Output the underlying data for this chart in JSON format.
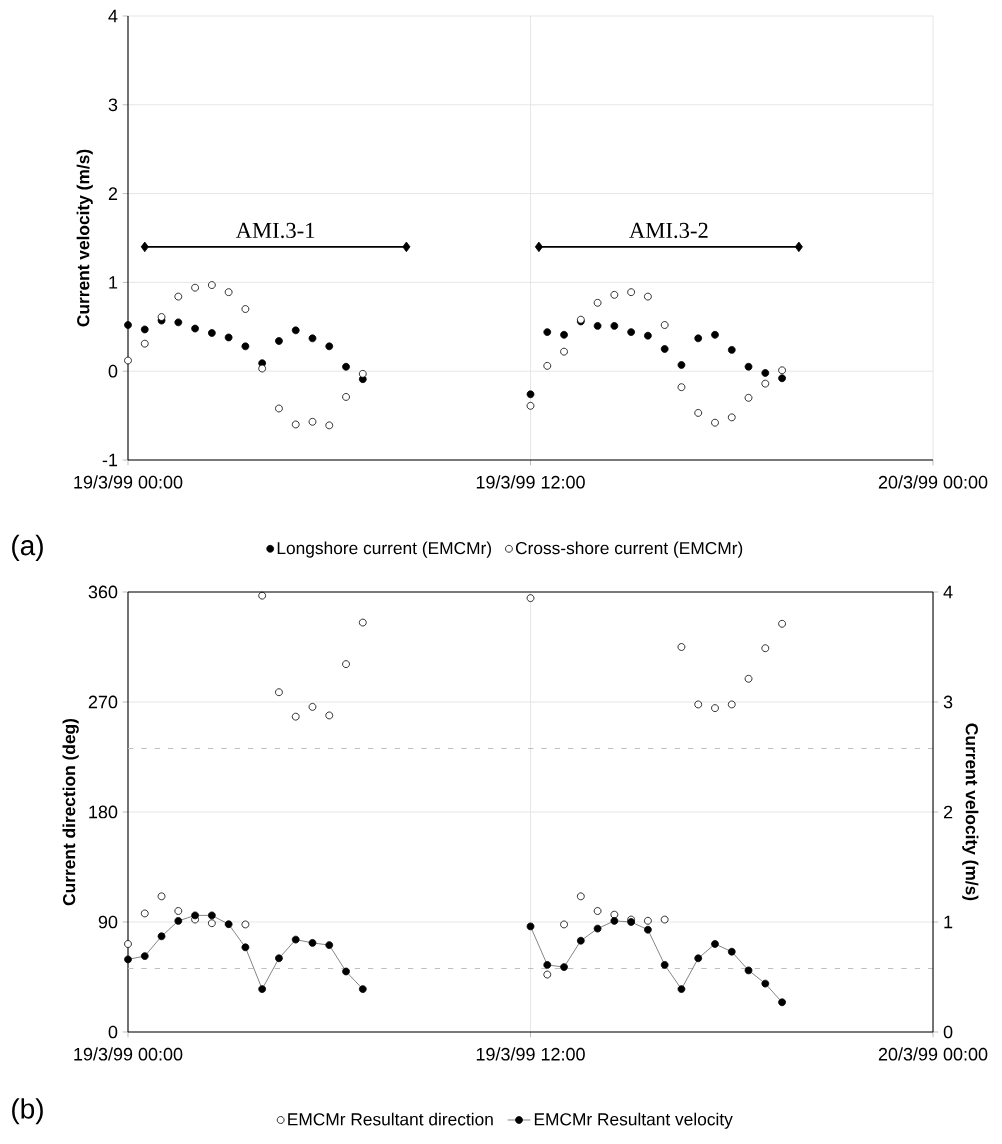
{
  "chart_data": [
    {
      "type": "scatter",
      "ylabel": "Current velocity (m/s)",
      "x": [
        "1999-03-19T00:00",
        "1999-03-19T00:30",
        "1999-03-19T01:00",
        "1999-03-19T01:30",
        "1999-03-19T02:00",
        "1999-03-19T02:30",
        "1999-03-19T03:00",
        "1999-03-19T03:30",
        "1999-03-19T04:00",
        "1999-03-19T04:30",
        "1999-03-19T05:00",
        "1999-03-19T05:30",
        "1999-03-19T06:00",
        "1999-03-19T06:30",
        "1999-03-19T07:00",
        "1999-03-19T09:30",
        "1999-03-19T12:00",
        "1999-03-19T12:30",
        "1999-03-19T13:00",
        "1999-03-19T13:30",
        "1999-03-19T14:00",
        "1999-03-19T14:30",
        "1999-03-19T15:00",
        "1999-03-19T15:30",
        "1999-03-19T16:00",
        "1999-03-19T16:30",
        "1999-03-19T17:00",
        "1999-03-19T17:30",
        "1999-03-19T18:00",
        "1999-03-19T18:30",
        "1999-03-19T19:00",
        "1999-03-19T19:30"
      ],
      "series": [
        {
          "name": "Longshore current (EMCMr)",
          "color": "#000000",
          "values": [
            0.52,
            0.47,
            0.57,
            0.55,
            0.48,
            0.43,
            0.38,
            0.28,
            0.09,
            0.34,
            0.46,
            0.37,
            0.28,
            0.05,
            -0.09,
            null,
            -0.26,
            0.44,
            0.41,
            0.56,
            0.51,
            0.51,
            0.44,
            0.4,
            0.25,
            0.07,
            0.37,
            0.41,
            0.24,
            0.05,
            -0.02,
            -0.08
          ]
        },
        {
          "name": "Cross-shore current (EMCMr)",
          "color": "#ffffff",
          "values": [
            0.12,
            0.31,
            0.61,
            0.84,
            0.94,
            0.97,
            0.89,
            0.7,
            0.03,
            -0.42,
            -0.6,
            -0.57,
            -0.61,
            -0.29,
            -0.03,
            null,
            -0.39,
            0.06,
            0.22,
            0.58,
            0.77,
            0.86,
            0.89,
            0.84,
            0.52,
            -0.18,
            -0.47,
            -0.58,
            -0.52,
            -0.3,
            -0.14,
            0.01
          ]
        },
        {
          "type": "line",
          "marker": "diamond",
          "color": "#000000",
          "x": [
            "1999-03-19T00:30",
            "1999-03-19T08:18"
          ],
          "values": [
            1.4,
            1.4
          ]
        },
        {
          "type": "line",
          "marker": "diamond",
          "color": "#000000",
          "x": [
            "1999-03-19T12:15",
            "1999-03-19T20:00"
          ],
          "values": [
            1.4,
            1.4
          ]
        }
      ],
      "marker": "circle",
      "xlim": [
        "1999-03-19T00:00",
        "1999-03-20T00:00"
      ],
      "xticks": [
        {
          "value": "1999-03-19T00:00",
          "label": "19/3/99 00:00"
        },
        {
          "value": "1999-03-19T12:00",
          "label": "19/3/99 12:00"
        },
        {
          "value": "1999-03-20T00:00",
          "label": "20/3/99 00:00"
        }
      ],
      "ylim": [
        -1,
        4
      ],
      "yticks": [
        -1,
        0,
        1,
        2,
        3,
        4
      ],
      "grid": true,
      "legend": "bottom",
      "annotations": [
        "AMI.3-1",
        "AMI.3-2",
        "(a)"
      ]
    },
    {
      "type": "scatter",
      "ylabel": "Current direction (deg)",
      "y2label": "Current velocity (m/s)",
      "x": [
        "1999-03-19T00:00",
        "1999-03-19T00:30",
        "1999-03-19T01:00",
        "1999-03-19T01:30",
        "1999-03-19T02:00",
        "1999-03-19T02:30",
        "1999-03-19T03:00",
        "1999-03-19T03:30",
        "1999-03-19T04:00",
        "1999-03-19T04:30",
        "1999-03-19T05:00",
        "1999-03-19T05:30",
        "1999-03-19T06:00",
        "1999-03-19T06:30",
        "1999-03-19T07:00",
        "1999-03-19T09:30",
        "1999-03-19T12:00",
        "1999-03-19T12:30",
        "1999-03-19T13:00",
        "1999-03-19T13:30",
        "1999-03-19T14:00",
        "1999-03-19T14:30",
        "1999-03-19T15:00",
        "1999-03-19T15:30",
        "1999-03-19T16:00",
        "1999-03-19T16:30",
        "1999-03-19T17:00",
        "1999-03-19T17:30",
        "1999-03-19T18:00",
        "1999-03-19T18:30",
        "1999-03-19T19:00",
        "1999-03-19T19:30"
      ],
      "series": [
        {
          "name": "EMCMr Resultant direction",
          "color": "#ffffff",
          "values": [
            72,
            97,
            111,
            99,
            92,
            89,
            null,
            88,
            357,
            278,
            258,
            266,
            259,
            301,
            335,
            null,
            355,
            47,
            88,
            111,
            99,
            96,
            92,
            91,
            92,
            315,
            268,
            265,
            268,
            289,
            314,
            334
          ]
        },
        {
          "name": "EMCMr Resultant velocity",
          "type": "line",
          "axis": "y2",
          "color": "#000000",
          "values": [
            0.66,
            0.69,
            0.87,
            1.01,
            1.06,
            1.06,
            0.98,
            0.77,
            0.39,
            0.67,
            0.84,
            0.81,
            0.79,
            0.55,
            0.39,
            null,
            0.96,
            0.61,
            0.59,
            0.83,
            0.94,
            1.01,
            1.0,
            0.93,
            0.61,
            0.39,
            0.67,
            0.8,
            0.73,
            0.56,
            0.44,
            0.27
          ]
        }
      ],
      "marker": "circle",
      "xlim": [
        "1999-03-19T00:00",
        "1999-03-20T00:00"
      ],
      "xticks": [
        {
          "value": "1999-03-19T00:00",
          "label": "19/3/99 00:00"
        },
        {
          "value": "1999-03-19T12:00",
          "label": "19/3/99 12:00"
        },
        {
          "value": "1999-03-20T00:00",
          "label": "20/3/99 00:00"
        }
      ],
      "ylim": [
        0,
        360
      ],
      "yticks": [
        0,
        90,
        180,
        270,
        360
      ],
      "y2lim": [
        0,
        4
      ],
      "y2ticks": [
        0,
        1,
        2,
        3,
        4
      ],
      "grid": true,
      "legend": "bottom",
      "ref_lines": [
        {
          "axis": "y",
          "value": 52,
          "color": "#bfbfbf",
          "line_style": "dashed"
        },
        {
          "axis": "y",
          "value": 232,
          "color": "#bfbfbf",
          "line_style": "dashed"
        }
      ],
      "annotations": [
        "(b)"
      ]
    }
  ]
}
